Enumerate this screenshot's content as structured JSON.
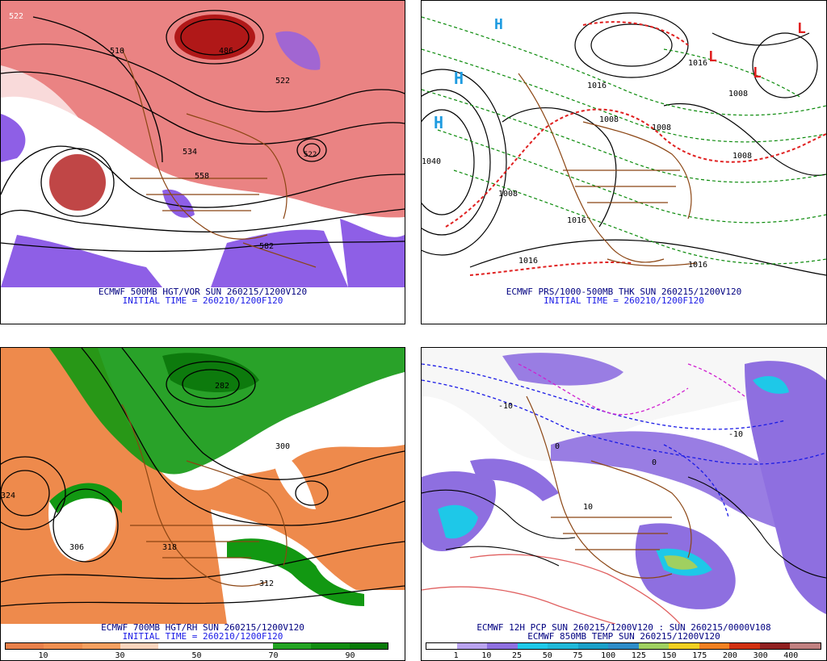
{
  "panels": {
    "tl": {
      "line1": "ECMWF 500MB HGT/VOR SUN 260215/1200V120",
      "line2": "INITIAL TIME = 260210/1200F120",
      "labels": [
        "522",
        "510",
        "486",
        "534",
        "558",
        "522",
        "582",
        "522"
      ]
    },
    "tr": {
      "line1": "ECMWF PRS/1000-500MB THK SUN 260215/1200V120",
      "line2": "INITIAL TIME = 260210/1200F120",
      "labels": [
        "1040",
        "1008",
        "1016",
        "1016",
        "1008",
        "1008",
        "1008",
        "1016",
        "1016",
        "1008",
        "1016"
      ]
    },
    "bl": {
      "line1": "ECMWF 700MB HGT/RH SUN 260215/1200V120",
      "line2": "INITIAL TIME = 260210/1200F120",
      "labels": [
        "324",
        "306",
        "312",
        "282",
        "300",
        "318"
      ],
      "scale": {
        "ticks": [
          "10",
          "30",
          "50",
          "70",
          "90"
        ],
        "colors": [
          "#e8804a",
          "#ef8f50",
          "#f4a060",
          "#fbd5bd",
          "#ffffff",
          "#ffffff",
          "#ffffff",
          "#22a322",
          "#0f8c0f",
          "#077a07"
        ]
      }
    },
    "br": {
      "line1": "ECMWF 12H PCP SUN 260215/1200V120 : SUN 260215/0000V108",
      "line2": "ECMWF 850MB TEMP SUN 260215/1200V120",
      "labels": [
        "-10",
        "0",
        "10",
        "-10",
        "0"
      ],
      "scale": {
        "ticks": [
          "1",
          "10",
          "25",
          "50",
          "75",
          "100",
          "125",
          "150",
          "175",
          "200",
          "300",
          "400"
        ],
        "colors": [
          "#ffffff",
          "#b9a3ef",
          "#8e6fe0",
          "#1ec8e8",
          "#20b8d8",
          "#1aa0c8",
          "#2d8cc8",
          "#a0d060",
          "#f0d020",
          "#f08020",
          "#d03010",
          "#902020",
          "#c08080"
        ]
      }
    }
  },
  "colors": {
    "vort_red": "#c81e1e",
    "vort_purple": "#7b4de0",
    "land": "#8b4513",
    "rh_green": "#119a11",
    "rh_orange": "#ee8a4c"
  }
}
